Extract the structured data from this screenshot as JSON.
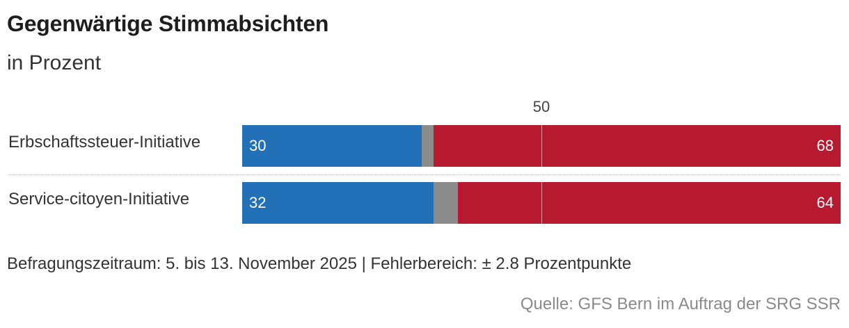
{
  "chart_data": {
    "type": "bar",
    "orientation": "horizontal",
    "stacked": true,
    "title": "Gegenwärtige Stimmabsichten",
    "subtitle": "in Prozent",
    "categories": [
      "Erbschaftssteuer-Initiative",
      "Service-citoyen-Initiative"
    ],
    "series": [
      {
        "values": [
          30,
          32
        ],
        "color": "#2270b7"
      },
      {
        "values": [
          2,
          4
        ],
        "color": "#8c8c8c"
      },
      {
        "values": [
          68,
          64
        ],
        "color": "#b71a2e"
      }
    ],
    "data_labels": [
      {
        "left": "30",
        "right": "68"
      },
      {
        "left": "32",
        "right": "64"
      }
    ],
    "reference_line": {
      "value": 50,
      "label": "50"
    },
    "xlim": [
      0,
      100
    ],
    "grid": false,
    "footnote": "Befragungszeitraum: 5. bis 13. November 2025 | Fehlerbereich: ± 2.8 Prozentpunkte",
    "source": "Quelle: GFS Bern im Auftrag der SRG SSR"
  }
}
